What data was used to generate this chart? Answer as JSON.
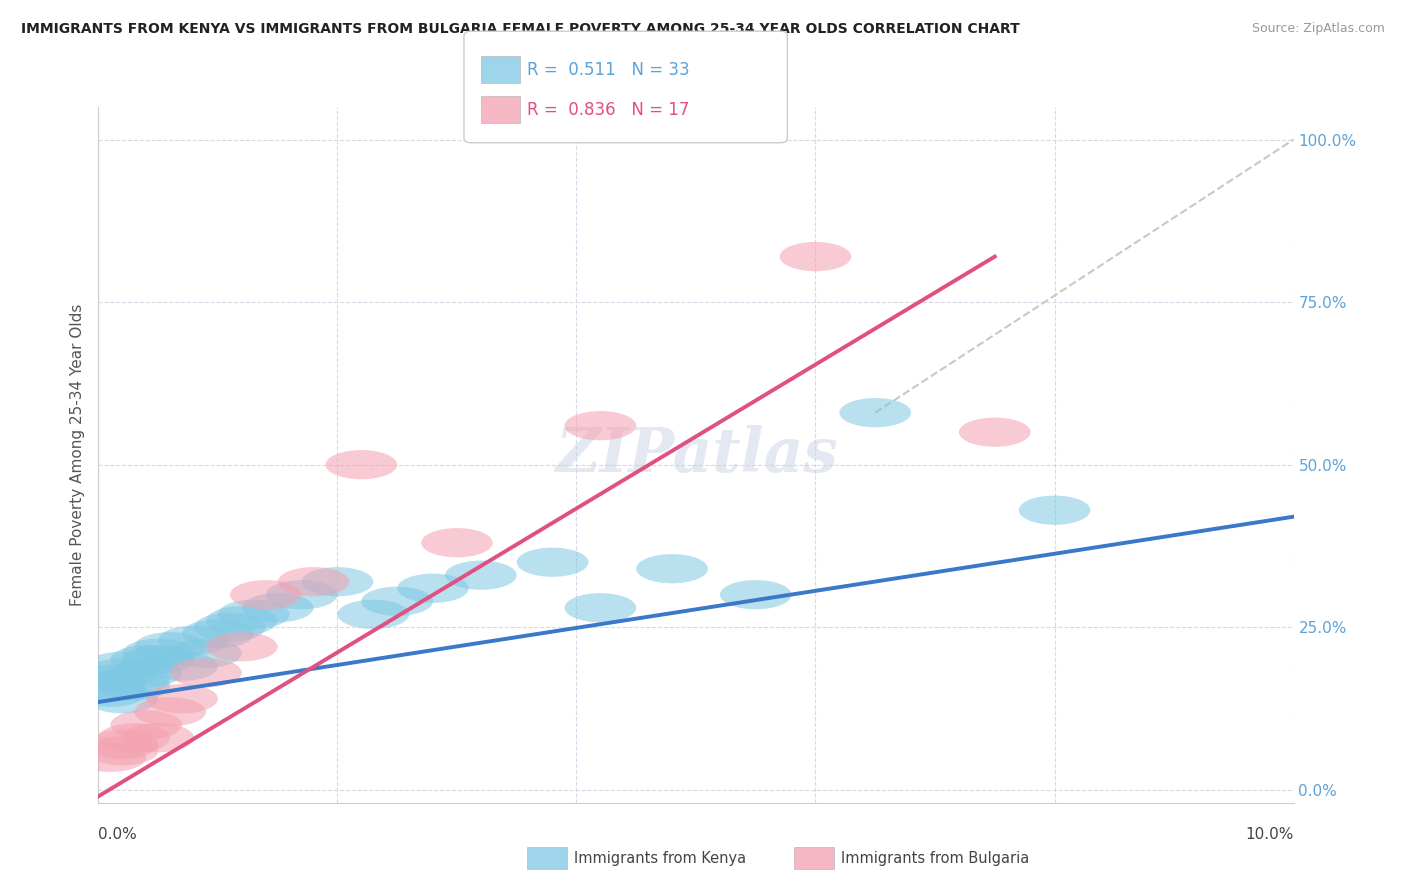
{
  "title": "IMMIGRANTS FROM KENYA VS IMMIGRANTS FROM BULGARIA FEMALE POVERTY AMONG 25-34 YEAR OLDS CORRELATION CHART",
  "source": "Source: ZipAtlas.com",
  "ylabel": "Female Poverty Among 25-34 Year Olds",
  "ytick_labels": [
    "0.0%",
    "25.0%",
    "50.0%",
    "75.0%",
    "100.0%"
  ],
  "ytick_values": [
    0.0,
    0.25,
    0.5,
    0.75,
    1.0
  ],
  "watermark": "ZIPatlas",
  "kenya_color": "#7ec8e3",
  "bulgaria_color": "#f4a0b0",
  "line_kenya_color": "#3a78c9",
  "line_bulgaria_color": "#e05080",
  "line_ref_color": "#c8c8c8",
  "tick_color": "#5ba3d9",
  "grid_color": "#d8d8e8",
  "kenya_x": [
    0.001,
    0.001,
    0.001,
    0.002,
    0.002,
    0.002,
    0.003,
    0.003,
    0.004,
    0.004,
    0.005,
    0.005,
    0.006,
    0.007,
    0.008,
    0.009,
    0.01,
    0.011,
    0.012,
    0.013,
    0.015,
    0.017,
    0.02,
    0.023,
    0.025,
    0.028,
    0.032,
    0.038,
    0.042,
    0.048,
    0.055,
    0.065,
    0.08
  ],
  "kenya_y": [
    0.15,
    0.16,
    0.17,
    0.14,
    0.18,
    0.19,
    0.17,
    0.16,
    0.18,
    0.2,
    0.21,
    0.2,
    0.22,
    0.19,
    0.23,
    0.21,
    0.24,
    0.25,
    0.26,
    0.27,
    0.28,
    0.3,
    0.32,
    0.27,
    0.29,
    0.31,
    0.33,
    0.35,
    0.28,
    0.34,
    0.3,
    0.58,
    0.43
  ],
  "bulgaria_x": [
    0.001,
    0.002,
    0.002,
    0.003,
    0.004,
    0.005,
    0.006,
    0.007,
    0.009,
    0.012,
    0.014,
    0.018,
    0.022,
    0.03,
    0.042,
    0.06,
    0.075
  ],
  "bulgaria_y": [
    0.05,
    0.06,
    0.07,
    0.08,
    0.1,
    0.08,
    0.12,
    0.14,
    0.18,
    0.22,
    0.3,
    0.32,
    0.5,
    0.38,
    0.56,
    0.82,
    0.55
  ],
  "xlim": [
    0.0,
    0.1
  ],
  "ylim": [
    -0.02,
    1.05
  ],
  "kenya_line_x0": 0.0,
  "kenya_line_y0": 0.135,
  "kenya_line_x1": 0.1,
  "kenya_line_y1": 0.42,
  "bulgaria_line_x0": 0.0,
  "bulgaria_line_y0": -0.01,
  "bulgaria_line_x1": 0.075,
  "bulgaria_line_y1": 0.82,
  "ref_line_x0": 0.065,
  "ref_line_y0": 0.58,
  "ref_line_x1": 0.1,
  "ref_line_y1": 1.0,
  "background_color": "#ffffff"
}
